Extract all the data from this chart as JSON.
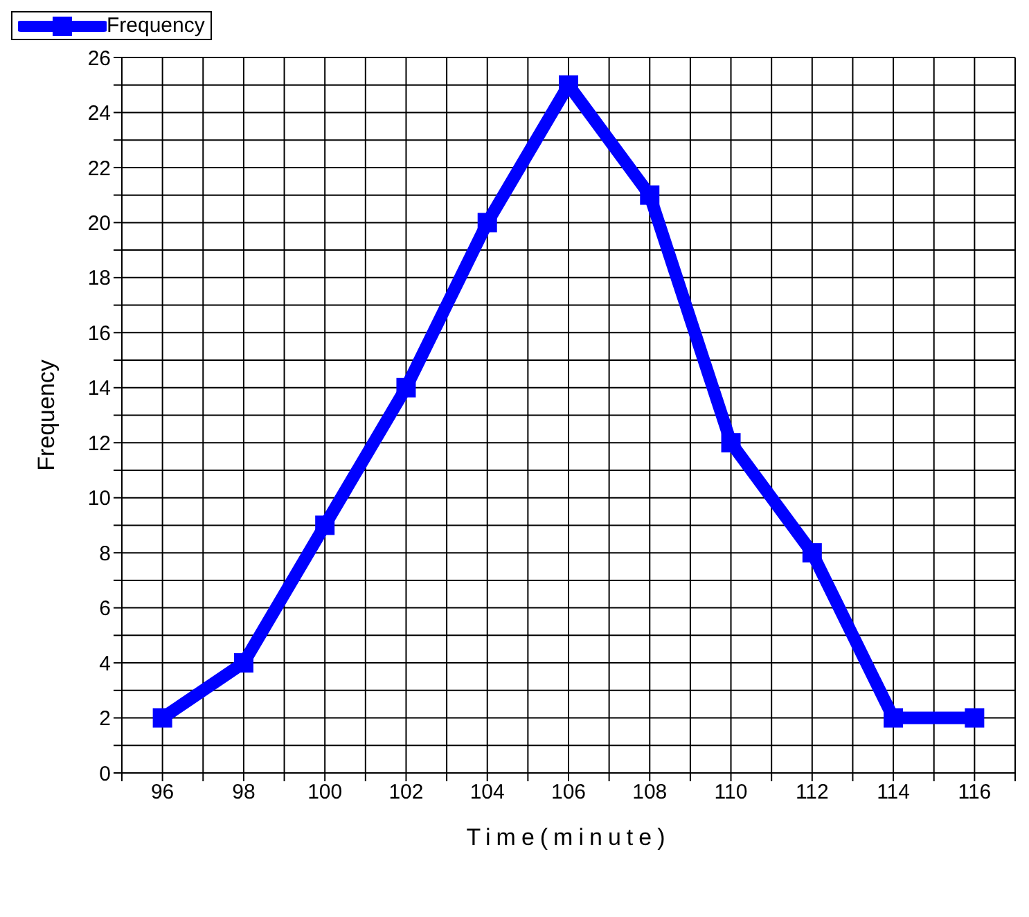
{
  "chart_data": {
    "type": "line",
    "xlabel": "Time(minute)",
    "ylabel": "Frequency",
    "x": [
      96,
      98,
      100,
      102,
      104,
      106,
      108,
      110,
      112,
      114,
      116
    ],
    "series": [
      {
        "name": "Frequency",
        "color": "#0000ff",
        "values": [
          2,
          4,
          9,
          14,
          20,
          25,
          21,
          12,
          8,
          2,
          2
        ]
      }
    ],
    "xlim": [
      95,
      117
    ],
    "xticks": [
      {
        "value": 95,
        "label": null
      },
      96,
      {
        "value": 97,
        "label": null
      },
      98,
      {
        "value": 99,
        "label": null
      },
      100,
      {
        "value": 101,
        "label": null
      },
      102,
      {
        "value": 103,
        "label": null
      },
      104,
      {
        "value": 105,
        "label": null
      },
      106,
      {
        "value": 107,
        "label": null
      },
      108,
      {
        "value": 109,
        "label": null
      },
      110,
      {
        "value": 111,
        "label": null
      },
      112,
      {
        "value": 113,
        "label": null
      },
      114,
      {
        "value": 115,
        "label": null
      },
      116,
      {
        "value": 117,
        "label": null
      }
    ],
    "ylim": [
      0,
      26
    ],
    "yticks": [
      0,
      {
        "value": 1,
        "label": null
      },
      2,
      {
        "value": 3,
        "label": null
      },
      4,
      {
        "value": 5,
        "label": null
      },
      6,
      {
        "value": 7,
        "label": null
      },
      8,
      {
        "value": 9,
        "label": null
      },
      10,
      {
        "value": 11,
        "label": null
      },
      12,
      {
        "value": 13,
        "label": null
      },
      14,
      {
        "value": 15,
        "label": null
      },
      16,
      {
        "value": 17,
        "label": null
      },
      18,
      {
        "value": 19,
        "label": null
      },
      20,
      {
        "value": 21,
        "label": null
      },
      22,
      {
        "value": 23,
        "label": null
      },
      24,
      {
        "value": 25,
        "label": null
      },
      26
    ],
    "grid": true,
    "legend": "top left",
    "marker": "square",
    "line_style": "solid"
  }
}
